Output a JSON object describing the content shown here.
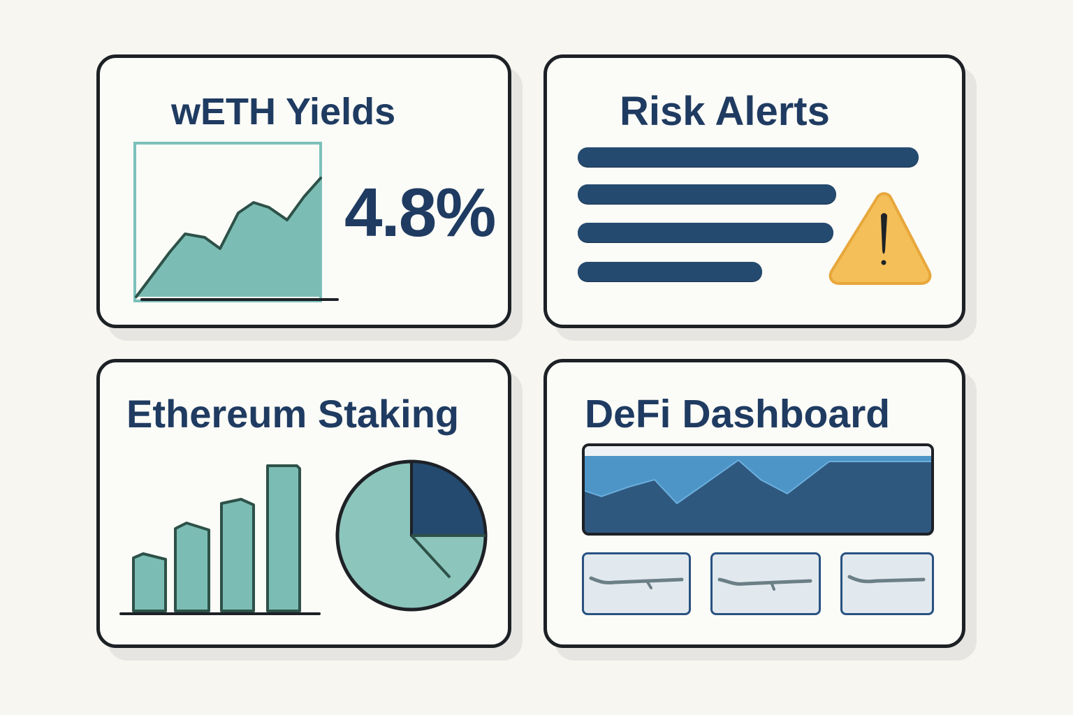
{
  "colors": {
    "background": "#f7f6f1",
    "card": "#fbfbf7",
    "border": "#1d2126",
    "heading": "#1f3b61",
    "teal": "#79bbb3",
    "teal_dark": "#2c4d48",
    "navy": "#254a70",
    "blue": "#4d95c7",
    "warning": "#f4bf58"
  },
  "cards": {
    "weth_yields": {
      "title": "wETH Yields",
      "value": "4.8%",
      "icon": "area-chart-icon"
    },
    "risk_alerts": {
      "title": "Risk Alerts",
      "line_count": 4,
      "icon": "warning-triangle-icon"
    },
    "ethereum_staking": {
      "title": "Ethereum Staking",
      "icons": [
        "bar-chart-icon",
        "pie-chart-icon"
      ]
    },
    "defi_dashboard": {
      "title": "DeFi Dashboard",
      "icons": [
        "mountain-chart-icon",
        "sparkline-icon"
      ],
      "metric_box_count": 3
    }
  }
}
